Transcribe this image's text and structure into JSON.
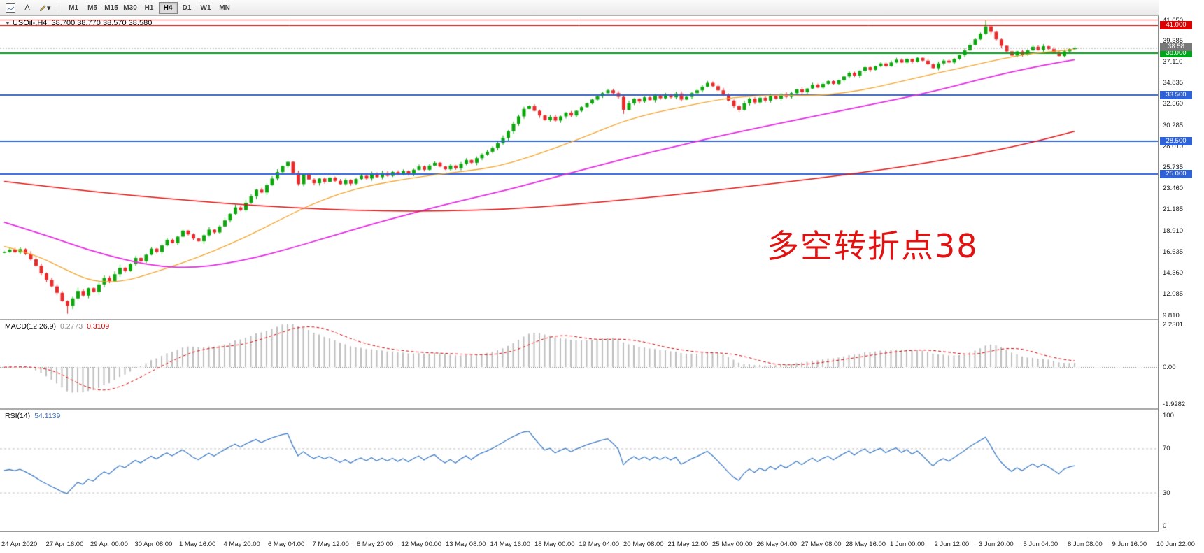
{
  "toolbar": {
    "text_tool_label": "A",
    "dropdown_glyph": "▾",
    "timeframes": [
      {
        "label": "M1",
        "active": false
      },
      {
        "label": "M5",
        "active": false
      },
      {
        "label": "M15",
        "active": false
      },
      {
        "label": "M30",
        "active": false
      },
      {
        "label": "H1",
        "active": false
      },
      {
        "label": "H4",
        "active": true
      },
      {
        "label": "D1",
        "active": false
      },
      {
        "label": "W1",
        "active": false
      },
      {
        "label": "MN",
        "active": false
      }
    ]
  },
  "main_title": {
    "collapse_glyph": "▼",
    "symbol_period": "USOil-,H4",
    "ohlc": "38.700 38.770 38.570 38.580"
  },
  "annotation": {
    "text": "多空转折点38",
    "color": "#e31212"
  },
  "indicators": {
    "macd": {
      "name": "MACD(12,26,9)",
      "main_value": "0.2773",
      "signal_value": "0.3109",
      "scale_top": "2.2301",
      "scale_zero": "0.00",
      "scale_bottom": "-1.9282"
    },
    "rsi": {
      "name": "RSI(14)",
      "value": "54.1139",
      "scale": [
        "100",
        "70",
        "30",
        "0"
      ]
    }
  },
  "chart_data": {
    "type": "candlestick",
    "title": "USOil-,H4",
    "symbol": "USOil-",
    "timeframe": "H4",
    "ohlc_display": {
      "open": "38.700",
      "high": "38.770",
      "low": "38.570",
      "close": "38.580"
    },
    "price_axis": {
      "max": 42.0,
      "min": 9.4,
      "tick_labels": [
        "41.650",
        "39.385",
        "37.110",
        "34.835",
        "32.560",
        "30.285",
        "28.010",
        "25.735",
        "23.460",
        "21.185",
        "18.910",
        "16.635",
        "14.360",
        "12.085",
        "9.810"
      ]
    },
    "first_open": 16.5,
    "closes": [
      16.6,
      16.85,
      16.55,
      16.9,
      16.4,
      15.8,
      15.1,
      14.3,
      13.6,
      12.9,
      12.2,
      11.3,
      10.8,
      11.6,
      12.4,
      11.9,
      12.7,
      12.3,
      13.1,
      13.8,
      13.45,
      14.2,
      14.9,
      14.55,
      15.3,
      15.95,
      15.6,
      16.3,
      16.95,
      16.6,
      17.3,
      17.9,
      17.55,
      18.25,
      18.9,
      18.5,
      18.05,
      17.75,
      18.4,
      19.0,
      18.7,
      19.35,
      20.0,
      20.7,
      21.4,
      21.1,
      21.9,
      22.6,
      23.3,
      23.0,
      23.8,
      24.5,
      25.2,
      25.85,
      26.3,
      25.1,
      23.9,
      24.9,
      24.4,
      24.0,
      24.5,
      24.15,
      24.6,
      24.25,
      23.9,
      24.35,
      23.95,
      24.45,
      24.8,
      24.5,
      25.0,
      24.65,
      25.1,
      24.8,
      25.2,
      24.9,
      25.3,
      25.0,
      25.45,
      25.8,
      25.45,
      25.9,
      26.2,
      25.8,
      25.5,
      25.9,
      25.6,
      26.1,
      26.5,
      26.2,
      26.7,
      27.1,
      27.4,
      27.8,
      28.3,
      28.9,
      29.6,
      30.4,
      31.2,
      32.0,
      32.3,
      31.8,
      31.3,
      30.8,
      31.15,
      30.75,
      31.2,
      31.6,
      31.3,
      31.8,
      32.2,
      32.6,
      33.0,
      33.35,
      33.7,
      34.0,
      33.7,
      33.3,
      31.9,
      32.6,
      33.1,
      32.8,
      33.25,
      32.95,
      33.4,
      33.15,
      33.55,
      33.25,
      33.65,
      33.0,
      33.3,
      33.7,
      34.0,
      34.4,
      34.8,
      34.45,
      34.0,
      33.5,
      32.9,
      32.3,
      31.9,
      32.6,
      33.1,
      32.7,
      33.2,
      32.9,
      33.4,
      33.1,
      33.6,
      33.3,
      33.7,
      34.1,
      33.8,
      34.2,
      34.6,
      34.3,
      34.7,
      35.0,
      34.7,
      35.1,
      35.5,
      35.9,
      35.6,
      36.1,
      36.5,
      36.2,
      36.6,
      36.9,
      36.6,
      37.0,
      37.3,
      37.0,
      37.4,
      37.1,
      37.5,
      37.2,
      36.8,
      36.4,
      36.9,
      37.2,
      37.0,
      37.4,
      37.8,
      38.3,
      38.9,
      39.5,
      40.1,
      40.9,
      40.3,
      39.5,
      38.8,
      38.2,
      37.75,
      38.2,
      37.85,
      38.3,
      38.7,
      38.35,
      38.75,
      38.45,
      38.1,
      37.7,
      38.2,
      38.45,
      38.58
    ],
    "extremes": {
      "low_bar": 12,
      "low_price": 9.95,
      "high_bar": 187,
      "high_price": 41.62
    },
    "candle_colors": {
      "up": "#0da60d",
      "down": "#ea2b2b"
    },
    "horizontal_lines": [
      {
        "price": 41.65,
        "color": "#dd0000",
        "width": 1,
        "label": null,
        "label_bg": null
      },
      {
        "price": 41.0,
        "color": "#dd0000",
        "width": 1,
        "label": "41.000",
        "label_bg": "#dd0000"
      },
      {
        "price": 38.0,
        "color": "#00a41c",
        "width": 2,
        "label": "38.000",
        "label_bg": "#00a41c"
      },
      {
        "price": 33.5,
        "color": "#2e62d9",
        "width": 2,
        "label": "33.500",
        "label_bg": "#2e62d9"
      },
      {
        "price": 28.5,
        "color": "#2e62d9",
        "width": 2,
        "label": "28.500",
        "label_bg": "#2e62d9"
      },
      {
        "price": 25.0,
        "color": "#2e62d9",
        "width": 2,
        "label": "25.000",
        "label_bg": "#2e62d9"
      }
    ],
    "current_price": {
      "value": "38.58",
      "price": 38.58,
      "label_bg": "#787878",
      "line_color": "#999999"
    },
    "moving_averages": [
      {
        "name": "ma-fast",
        "color": "#f2a52e",
        "width": 1.3,
        "points": [
          [
            0,
            17.2
          ],
          [
            6,
            16.3
          ],
          [
            12,
            14.6
          ],
          [
            16,
            13.6
          ],
          [
            20,
            13.3
          ],
          [
            24,
            13.6
          ],
          [
            28,
            14.3
          ],
          [
            34,
            15.4
          ],
          [
            40,
            16.7
          ],
          [
            46,
            18.2
          ],
          [
            52,
            19.9
          ],
          [
            58,
            21.6
          ],
          [
            64,
            22.9
          ],
          [
            70,
            23.8
          ],
          [
            76,
            24.4
          ],
          [
            82,
            24.9
          ],
          [
            88,
            25.3
          ],
          [
            94,
            25.8
          ],
          [
            100,
            26.8
          ],
          [
            106,
            28.0
          ],
          [
            112,
            29.3
          ],
          [
            118,
            30.7
          ],
          [
            124,
            31.6
          ],
          [
            130,
            32.3
          ],
          [
            136,
            33.0
          ],
          [
            142,
            33.4
          ],
          [
            148,
            33.5
          ],
          [
            154,
            33.4
          ],
          [
            160,
            33.7
          ],
          [
            166,
            34.3
          ],
          [
            172,
            35.1
          ],
          [
            178,
            35.9
          ],
          [
            184,
            36.6
          ],
          [
            190,
            37.4
          ],
          [
            196,
            38.0
          ],
          [
            204,
            38.4
          ]
        ]
      },
      {
        "name": "ma-medium",
        "color": "#e32ce3",
        "width": 1.8,
        "points": [
          [
            0,
            19.8
          ],
          [
            8,
            18.4
          ],
          [
            16,
            16.8
          ],
          [
            24,
            15.6
          ],
          [
            30,
            15.0
          ],
          [
            36,
            14.9
          ],
          [
            42,
            15.3
          ],
          [
            48,
            16.0
          ],
          [
            54,
            16.9
          ],
          [
            60,
            17.9
          ],
          [
            66,
            18.9
          ],
          [
            72,
            19.9
          ],
          [
            78,
            20.8
          ],
          [
            84,
            21.7
          ],
          [
            90,
            22.5
          ],
          [
            96,
            23.3
          ],
          [
            102,
            24.2
          ],
          [
            108,
            25.1
          ],
          [
            114,
            26.0
          ],
          [
            120,
            26.9
          ],
          [
            126,
            27.7
          ],
          [
            132,
            28.5
          ],
          [
            138,
            29.3
          ],
          [
            144,
            30.0
          ],
          [
            150,
            30.7
          ],
          [
            156,
            31.4
          ],
          [
            162,
            32.1
          ],
          [
            168,
            32.8
          ],
          [
            174,
            33.5
          ],
          [
            180,
            34.3
          ],
          [
            186,
            35.2
          ],
          [
            192,
            36.0
          ],
          [
            198,
            36.7
          ],
          [
            204,
            37.3
          ]
        ]
      },
      {
        "name": "ma-slow",
        "color": "#e51212",
        "width": 1.5,
        "points": [
          [
            0,
            24.2
          ],
          [
            12,
            23.4
          ],
          [
            24,
            22.7
          ],
          [
            36,
            22.1
          ],
          [
            48,
            21.6
          ],
          [
            60,
            21.2
          ],
          [
            72,
            21.0
          ],
          [
            84,
            21.0
          ],
          [
            96,
            21.2
          ],
          [
            108,
            21.7
          ],
          [
            120,
            22.3
          ],
          [
            132,
            23.0
          ],
          [
            144,
            23.8
          ],
          [
            156,
            24.6
          ],
          [
            168,
            25.5
          ],
          [
            176,
            26.2
          ],
          [
            184,
            27.0
          ],
          [
            192,
            27.9
          ],
          [
            198,
            28.7
          ],
          [
            204,
            29.6
          ]
        ]
      }
    ],
    "macd_axis": {
      "max": 2.2301,
      "min": -1.9282,
      "params": {
        "fast": 12,
        "slow": 26,
        "signal": 9
      },
      "histogram_color": "#bdbdbd",
      "signal_color": "#dd0000"
    },
    "rsi_axis": {
      "max": 100,
      "min": 0,
      "period": 14,
      "levels": [
        70,
        30
      ],
      "line_color": "#3f7cc4"
    },
    "time_labels": [
      "24 Apr 2020",
      "27 Apr 16:00",
      "29 Apr 00:00",
      "30 Apr 08:00",
      "1 May 16:00",
      "4 May 20:00",
      "6 May 04:00",
      "7 May 12:00",
      "8 May 20:00",
      "12 May 00:00",
      "13 May 08:00",
      "14 May 16:00",
      "18 May 00:00",
      "19 May 04:00",
      "20 May 08:00",
      "21 May 12:00",
      "25 May 00:00",
      "26 May 04:00",
      "27 May 08:00",
      "28 May 16:00",
      "1 Jun 00:00",
      "2 Jun 12:00",
      "3 Jun 20:00",
      "5 Jun 04:00",
      "8 Jun 08:00",
      "9 Jun 16:00",
      "10 Jun 22:00"
    ]
  }
}
